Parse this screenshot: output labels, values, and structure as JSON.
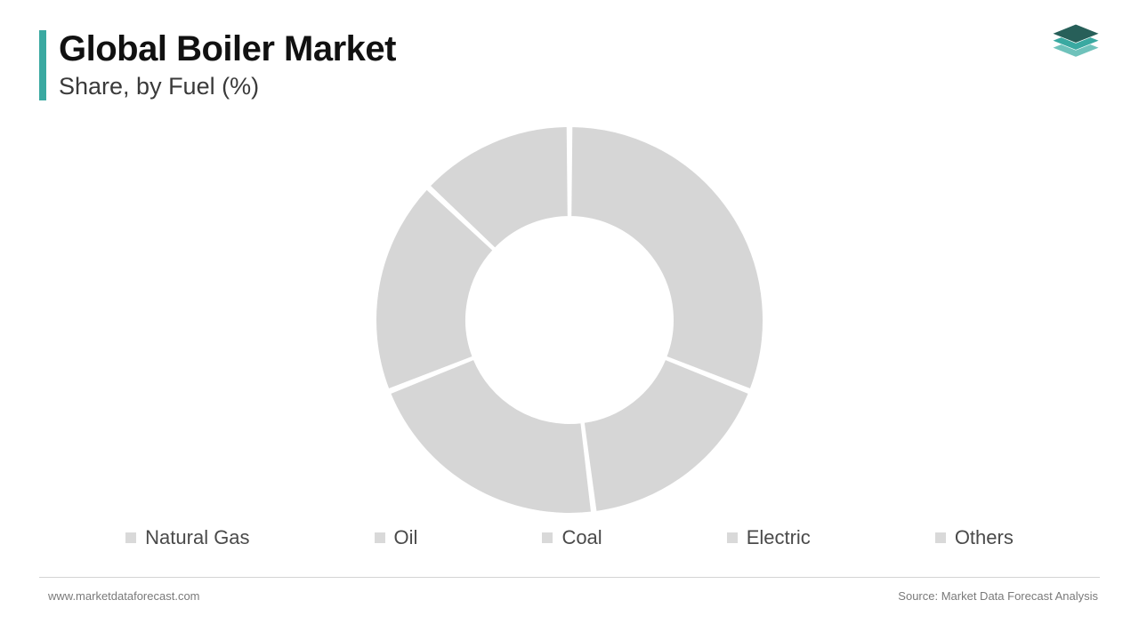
{
  "header": {
    "title": "Global Boiler Market",
    "subtitle": "Share, by Fuel (%)",
    "accent_color": "#3aa9a1",
    "title_color": "#111111",
    "subtitle_color": "#3a3a3a",
    "title_fontsize": 40,
    "subtitle_fontsize": 27
  },
  "logo": {
    "colors": [
      "#275f59",
      "#3aa9a1",
      "#6fc2bb"
    ],
    "stroke": "#ffffff"
  },
  "chart": {
    "type": "donut",
    "outer_radius": 218,
    "inner_radius": 116,
    "gap_deg": 1.2,
    "background_color": "#ffffff",
    "slice_color": "#d6d6d6",
    "stroke_color": "#ffffff",
    "stroke_width": 2,
    "slices": [
      {
        "label": "Natural Gas",
        "value": 31
      },
      {
        "label": "Oil",
        "value": 17
      },
      {
        "label": "Coal",
        "value": 21
      },
      {
        "label": "Electric",
        "value": 18
      },
      {
        "label": "Others",
        "value": 13
      }
    ]
  },
  "legend": {
    "swatch_color": "#d9d9d9",
    "label_color": "#4a4a4a",
    "label_fontsize": 22,
    "items": [
      "Natural Gas",
      "Oil",
      "Coal",
      "Electric",
      "Others"
    ]
  },
  "footer": {
    "left": "www.marketdataforecast.com",
    "right": "Source: Market Data Forecast Analysis",
    "text_color": "#7a7a7a",
    "rule_color": "#d4d4d4"
  }
}
